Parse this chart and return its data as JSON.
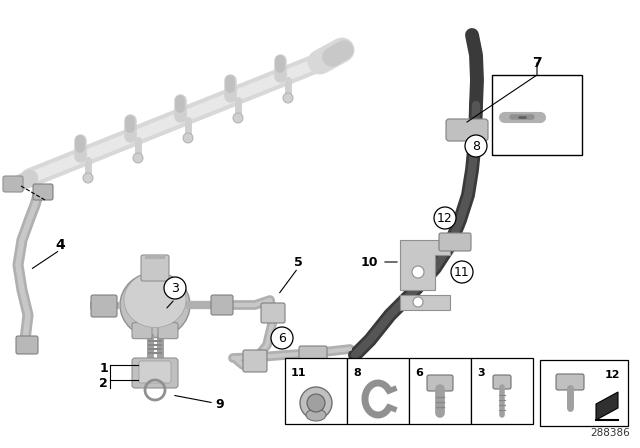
{
  "bg_color": "#ffffff",
  "part_number": "288386",
  "fig_w": 6.4,
  "fig_h": 4.48,
  "rail_color": "#d0d0d0",
  "tube_color": "#a0a0a0",
  "dark_tube_color": "#505050",
  "pump_color": "#b8b8b8",
  "label_fontsize": 9,
  "circle_label_fontsize": 9
}
